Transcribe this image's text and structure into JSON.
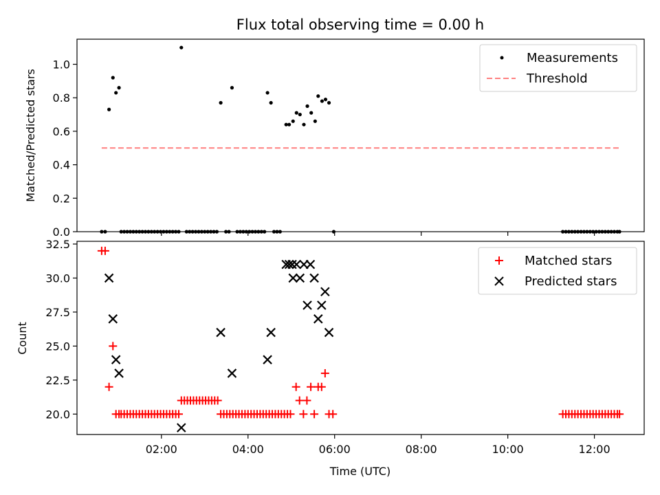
{
  "chart_data": [
    {
      "type": "scatter",
      "title": "Flux total observing time = 0.00 h",
      "xlabel": "",
      "ylabel": "Matched/Predicted stars",
      "xlim": [
        0.05,
        13.15
      ],
      "ylim": [
        0.0,
        1.15
      ],
      "yticks": [
        0.0,
        0.2,
        0.4,
        0.6,
        0.8,
        1.0
      ],
      "ytick_labels": [
        "0.0",
        "0.2",
        "0.4",
        "0.6",
        "0.8",
        "1.0"
      ],
      "legend_placement": "top-right",
      "series": [
        {
          "name": "Measurements",
          "color": "#000000",
          "marker": "dot",
          "points": [
            [
              0.62,
              0.0
            ],
            [
              0.7,
              0.0
            ],
            [
              0.79,
              0.73
            ],
            [
              0.88,
              0.92
            ],
            [
              0.95,
              0.83
            ],
            [
              1.02,
              0.86
            ],
            [
              1.07,
              0.0
            ],
            [
              1.14,
              0.0
            ],
            [
              1.21,
              0.0
            ],
            [
              1.28,
              0.0
            ],
            [
              1.35,
              0.0
            ],
            [
              1.42,
              0.0
            ],
            [
              1.49,
              0.0
            ],
            [
              1.56,
              0.0
            ],
            [
              1.63,
              0.0
            ],
            [
              1.7,
              0.0
            ],
            [
              1.77,
              0.0
            ],
            [
              1.84,
              0.0
            ],
            [
              1.91,
              0.0
            ],
            [
              1.98,
              0.0
            ],
            [
              2.05,
              0.0
            ],
            [
              2.12,
              0.0
            ],
            [
              2.19,
              0.0
            ],
            [
              2.26,
              0.0
            ],
            [
              2.33,
              0.0
            ],
            [
              2.4,
              0.0
            ],
            [
              2.46,
              1.1
            ],
            [
              2.58,
              0.0
            ],
            [
              2.65,
              0.0
            ],
            [
              2.72,
              0.0
            ],
            [
              2.79,
              0.0
            ],
            [
              2.86,
              0.0
            ],
            [
              2.93,
              0.0
            ],
            [
              3.0,
              0.0
            ],
            [
              3.07,
              0.0
            ],
            [
              3.14,
              0.0
            ],
            [
              3.21,
              0.0
            ],
            [
              3.28,
              0.0
            ],
            [
              3.37,
              0.77
            ],
            [
              3.49,
              0.0
            ],
            [
              3.56,
              0.0
            ],
            [
              3.63,
              0.86
            ],
            [
              3.75,
              0.0
            ],
            [
              3.82,
              0.0
            ],
            [
              3.89,
              0.0
            ],
            [
              3.96,
              0.0
            ],
            [
              4.03,
              0.0
            ],
            [
              4.1,
              0.0
            ],
            [
              4.17,
              0.0
            ],
            [
              4.24,
              0.0
            ],
            [
              4.31,
              0.0
            ],
            [
              4.38,
              0.0
            ],
            [
              4.45,
              0.83
            ],
            [
              4.53,
              0.77
            ],
            [
              4.6,
              0.0
            ],
            [
              4.67,
              0.0
            ],
            [
              4.74,
              0.0
            ],
            [
              4.88,
              0.64
            ],
            [
              4.95,
              0.64
            ],
            [
              5.04,
              0.66
            ],
            [
              5.12,
              0.71
            ],
            [
              5.2,
              0.7
            ],
            [
              5.29,
              0.64
            ],
            [
              5.37,
              0.75
            ],
            [
              5.46,
              0.71
            ],
            [
              5.55,
              0.66
            ],
            [
              5.62,
              0.81
            ],
            [
              5.71,
              0.78
            ],
            [
              5.79,
              0.79
            ],
            [
              5.87,
              0.77
            ],
            [
              5.98,
              0.0
            ],
            [
              11.27,
              0.0
            ],
            [
              11.34,
              0.0
            ],
            [
              11.41,
              0.0
            ],
            [
              11.48,
              0.0
            ],
            [
              11.55,
              0.0
            ],
            [
              11.62,
              0.0
            ],
            [
              11.69,
              0.0
            ],
            [
              11.76,
              0.0
            ],
            [
              11.83,
              0.0
            ],
            [
              11.9,
              0.0
            ],
            [
              11.97,
              0.0
            ],
            [
              12.04,
              0.0
            ],
            [
              12.11,
              0.0
            ],
            [
              12.18,
              0.0
            ],
            [
              12.25,
              0.0
            ],
            [
              12.32,
              0.0
            ],
            [
              12.39,
              0.0
            ],
            [
              12.46,
              0.0
            ],
            [
              12.53,
              0.0
            ],
            [
              12.58,
              0.0
            ]
          ]
        },
        {
          "name": "Threshold",
          "color": "#ff7f7f",
          "style": "dashed-line",
          "points": [
            [
              0.62,
              0.5
            ],
            [
              12.58,
              0.5
            ]
          ]
        }
      ]
    },
    {
      "type": "scatter",
      "title": "",
      "xlabel": "Time (UTC)",
      "ylabel": "Count",
      "xlim": [
        0.05,
        13.15
      ],
      "ylim": [
        18.5,
        32.7
      ],
      "xticks": [
        2,
        4,
        6,
        8,
        10,
        12
      ],
      "xtick_labels": [
        "02:00",
        "04:00",
        "06:00",
        "08:00",
        "10:00",
        "12:00"
      ],
      "yticks": [
        20.0,
        22.5,
        25.0,
        27.5,
        30.0,
        32.5
      ],
      "ytick_labels": [
        "20.0",
        "22.5",
        "25.0",
        "27.5",
        "30.0",
        "32.5"
      ],
      "legend_placement": "top-right",
      "series": [
        {
          "name": "Matched stars",
          "color": "#ff0000",
          "marker": "plus",
          "points": [
            [
              0.62,
              32
            ],
            [
              0.7,
              32
            ],
            [
              0.79,
              22
            ],
            [
              0.88,
              25
            ],
            [
              0.95,
              20
            ],
            [
              1.02,
              20
            ],
            [
              1.07,
              20
            ],
            [
              1.14,
              20
            ],
            [
              1.21,
              20
            ],
            [
              1.28,
              20
            ],
            [
              1.35,
              20
            ],
            [
              1.42,
              20
            ],
            [
              1.49,
              20
            ],
            [
              1.56,
              20
            ],
            [
              1.63,
              20
            ],
            [
              1.7,
              20
            ],
            [
              1.77,
              20
            ],
            [
              1.84,
              20
            ],
            [
              1.91,
              20
            ],
            [
              1.98,
              20
            ],
            [
              2.05,
              20
            ],
            [
              2.12,
              20
            ],
            [
              2.19,
              20
            ],
            [
              2.26,
              20
            ],
            [
              2.33,
              20
            ],
            [
              2.4,
              20
            ],
            [
              2.46,
              21
            ],
            [
              2.53,
              21
            ],
            [
              2.6,
              21
            ],
            [
              2.67,
              21
            ],
            [
              2.74,
              21
            ],
            [
              2.81,
              21
            ],
            [
              2.88,
              21
            ],
            [
              2.95,
              21
            ],
            [
              3.02,
              21
            ],
            [
              3.09,
              21
            ],
            [
              3.16,
              21
            ],
            [
              3.23,
              21
            ],
            [
              3.3,
              21
            ],
            [
              3.37,
              20
            ],
            [
              3.44,
              20
            ],
            [
              3.51,
              20
            ],
            [
              3.58,
              20
            ],
            [
              3.65,
              20
            ],
            [
              3.72,
              20
            ],
            [
              3.79,
              20
            ],
            [
              3.86,
              20
            ],
            [
              3.93,
              20
            ],
            [
              4.0,
              20
            ],
            [
              4.07,
              20
            ],
            [
              4.14,
              20
            ],
            [
              4.21,
              20
            ],
            [
              4.28,
              20
            ],
            [
              4.35,
              20
            ],
            [
              4.42,
              20
            ],
            [
              4.49,
              20
            ],
            [
              4.56,
              20
            ],
            [
              4.63,
              20
            ],
            [
              4.7,
              20
            ],
            [
              4.77,
              20
            ],
            [
              4.84,
              20
            ],
            [
              4.91,
              20
            ],
            [
              4.98,
              20
            ],
            [
              5.11,
              22
            ],
            [
              5.19,
              21
            ],
            [
              5.28,
              20
            ],
            [
              5.36,
              21
            ],
            [
              5.45,
              22
            ],
            [
              5.53,
              20
            ],
            [
              5.62,
              22
            ],
            [
              5.7,
              22
            ],
            [
              5.78,
              23
            ],
            [
              5.87,
              20
            ],
            [
              5.96,
              20
            ],
            [
              11.27,
              20
            ],
            [
              11.34,
              20
            ],
            [
              11.41,
              20
            ],
            [
              11.48,
              20
            ],
            [
              11.55,
              20
            ],
            [
              11.62,
              20
            ],
            [
              11.69,
              20
            ],
            [
              11.76,
              20
            ],
            [
              11.83,
              20
            ],
            [
              11.9,
              20
            ],
            [
              11.97,
              20
            ],
            [
              12.04,
              20
            ],
            [
              12.11,
              20
            ],
            [
              12.18,
              20
            ],
            [
              12.25,
              20
            ],
            [
              12.32,
              20
            ],
            [
              12.39,
              20
            ],
            [
              12.46,
              20
            ],
            [
              12.53,
              20
            ],
            [
              12.58,
              20
            ]
          ]
        },
        {
          "name": "Predicted stars",
          "color": "#000000",
          "marker": "x",
          "points": [
            [
              0.79,
              30
            ],
            [
              0.88,
              27
            ],
            [
              0.95,
              24
            ],
            [
              1.02,
              23
            ],
            [
              2.46,
              19
            ],
            [
              3.37,
              26
            ],
            [
              3.63,
              23
            ],
            [
              4.45,
              24
            ],
            [
              4.53,
              26
            ],
            [
              4.88,
              31
            ],
            [
              4.95,
              31
            ],
            [
              5.02,
              31
            ],
            [
              5.04,
              30
            ],
            [
              5.12,
              31
            ],
            [
              5.2,
              30
            ],
            [
              5.29,
              31
            ],
            [
              5.37,
              28
            ],
            [
              5.44,
              31
            ],
            [
              5.53,
              30
            ],
            [
              5.62,
              27
            ],
            [
              5.7,
              28
            ],
            [
              5.78,
              29
            ],
            [
              5.87,
              26
            ]
          ]
        }
      ]
    }
  ]
}
